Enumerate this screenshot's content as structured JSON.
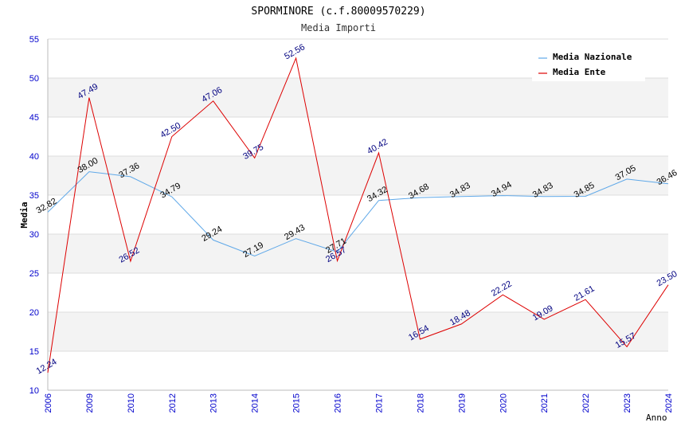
{
  "chart_data": {
    "type": "line",
    "title": "SPORMINORE (c.f.80009570229)",
    "subtitle": "Media Importi",
    "ylabel": "Media",
    "xlabel": "Anno",
    "ylim": [
      10,
      55
    ],
    "yticks": [
      10,
      15,
      20,
      25,
      30,
      35,
      40,
      45,
      50,
      55
    ],
    "categories": [
      "2006",
      "2009",
      "2010",
      "2012",
      "2013",
      "2014",
      "2015",
      "2016",
      "2017",
      "2018",
      "2019",
      "2020",
      "2021",
      "2022",
      "2023",
      "2024"
    ],
    "series": [
      {
        "name": "Media Nazionale",
        "color": "#5fa8e8",
        "labelColor": "#000000",
        "values": [
          32.82,
          38.0,
          37.36,
          34.79,
          29.24,
          27.19,
          29.43,
          27.71,
          34.32,
          34.68,
          34.83,
          34.94,
          34.83,
          34.85,
          37.05,
          36.46
        ],
        "labels": [
          "32.82",
          "38.00",
          "37.36",
          "34.79",
          "29.24",
          "27.19",
          "29.43",
          "27.71",
          "34.32",
          "34.68",
          "34.83",
          "34.94",
          "34.83",
          "34.85",
          "37.05",
          "36.46"
        ]
      },
      {
        "name": "Media Ente",
        "color": "#dd0000",
        "labelColor": "#000080",
        "values": [
          12.24,
          47.49,
          26.52,
          42.5,
          47.06,
          39.75,
          52.56,
          26.57,
          40.42,
          16.54,
          18.48,
          22.22,
          19.09,
          21.61,
          15.57,
          23.5
        ],
        "labels": [
          "12.24",
          "47.49",
          "26.52",
          "42.50",
          "47.06",
          "39.75",
          "52.56",
          "26.57",
          "40.42",
          "16.54",
          "18.48",
          "22.22",
          "19.09",
          "21.61",
          "15.57",
          "23.50"
        ]
      }
    ],
    "legend_position": "top-right",
    "grid": true
  }
}
